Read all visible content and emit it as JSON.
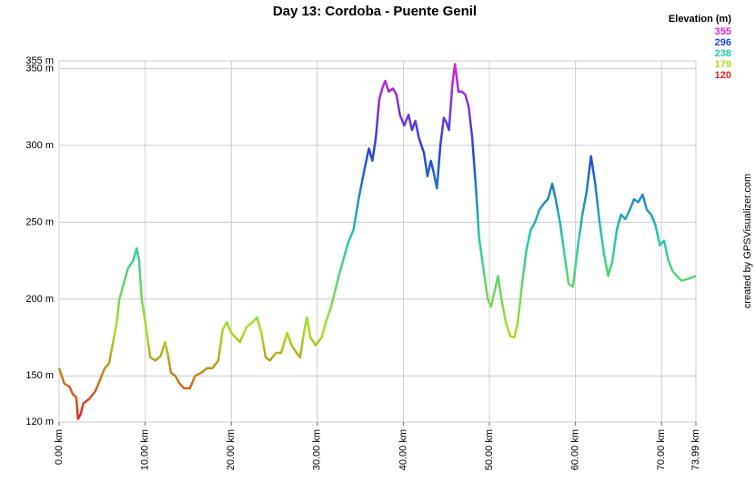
{
  "chart_data": {
    "type": "line",
    "title": "Day 13: Cordoba - Puente Genil",
    "legend_title": "Elevation (m)",
    "credit": "created by GPSVisualizer.com",
    "colorscale": [
      {
        "value": 355,
        "color": "#dd22dd"
      },
      {
        "value": 296,
        "color": "#2244dd"
      },
      {
        "value": 238,
        "color": "#22ccaa"
      },
      {
        "value": 179,
        "color": "#aadd22"
      },
      {
        "value": 120,
        "color": "#dd2222"
      }
    ],
    "grid": true,
    "xlim": [
      0,
      73.99
    ],
    "ylim": [
      120,
      355
    ],
    "xticks": [
      {
        "value": 0,
        "label": "0.00 km"
      },
      {
        "value": 10,
        "label": "10.00 km"
      },
      {
        "value": 20,
        "label": "20.00 km"
      },
      {
        "value": 30,
        "label": "30.00 km"
      },
      {
        "value": 40,
        "label": "40.00 km"
      },
      {
        "value": 50,
        "label": "50.00 km"
      },
      {
        "value": 60,
        "label": "60.00 km"
      },
      {
        "value": 70,
        "label": "70.00 km"
      },
      {
        "value": 73.99,
        "label": "73.99 km"
      }
    ],
    "yticks": [
      {
        "value": 120,
        "label": "120 m"
      },
      {
        "value": 150,
        "label": "150 m"
      },
      {
        "value": 200,
        "label": "200 m"
      },
      {
        "value": 250,
        "label": "250 m"
      },
      {
        "value": 300,
        "label": "300 m"
      },
      {
        "value": 350,
        "label": "350 m"
      },
      {
        "value": 355,
        "label": "355 m"
      }
    ],
    "x": [
      0.0,
      0.3,
      0.6,
      1.2,
      1.6,
      2.0,
      2.2,
      2.5,
      2.8,
      3.5,
      4.2,
      4.8,
      5.3,
      5.8,
      6.2,
      6.7,
      7.0,
      7.5,
      8.0,
      8.6,
      9.0,
      9.3,
      9.6,
      10.0,
      10.6,
      11.2,
      11.8,
      12.3,
      12.6,
      13.0,
      13.5,
      14.0,
      14.5,
      15.2,
      15.8,
      16.5,
      17.2,
      17.8,
      18.5,
      19.0,
      19.5,
      20.0,
      20.5,
      21.0,
      21.8,
      22.5,
      23.0,
      23.5,
      24.0,
      24.5,
      25.2,
      25.8,
      26.5,
      27.0,
      27.6,
      28.0,
      28.5,
      28.8,
      29.2,
      29.8,
      30.5,
      31.0,
      31.6,
      32.5,
      33.0,
      33.6,
      34.2,
      34.8,
      35.5,
      36.0,
      36.4,
      36.8,
      37.2,
      37.6,
      37.9,
      38.3,
      38.8,
      39.2,
      39.6,
      40.1,
      40.6,
      41.0,
      41.4,
      41.8,
      42.4,
      42.8,
      43.2,
      43.5,
      43.9,
      44.3,
      44.7,
      45.0,
      45.3,
      45.7,
      46.0,
      46.4,
      46.8,
      47.2,
      47.6,
      48.0,
      48.4,
      48.8,
      49.3,
      49.8,
      50.2,
      50.6,
      51.0,
      51.4,
      51.9,
      52.4,
      52.9,
      53.3,
      53.8,
      54.3,
      54.8,
      55.3,
      55.8,
      56.3,
      56.8,
      57.3,
      57.7,
      58.2,
      58.7,
      59.2,
      59.7,
      60.3,
      60.8,
      61.3,
      61.8,
      62.3,
      62.8,
      63.3,
      63.8,
      64.3,
      64.8,
      65.3,
      65.8,
      66.3,
      66.8,
      67.3,
      67.8,
      68.3,
      68.8,
      69.3,
      69.8,
      70.3,
      70.8,
      71.3,
      71.8,
      72.3,
      73.0,
      73.99
    ],
    "series": [
      {
        "name": "Elevation",
        "values": [
          155,
          150,
          145,
          143,
          138,
          136,
          122,
          125,
          132,
          135,
          140,
          148,
          155,
          158,
          170,
          185,
          200,
          210,
          220,
          225,
          233,
          225,
          200,
          185,
          162,
          160,
          163,
          172,
          165,
          152,
          150,
          145,
          142,
          142,
          150,
          152,
          155,
          155,
          160,
          180,
          185,
          178,
          175,
          172,
          182,
          185,
          188,
          178,
          162,
          160,
          165,
          165,
          178,
          170,
          165,
          162,
          180,
          188,
          175,
          170,
          175,
          185,
          195,
          215,
          225,
          237,
          245,
          265,
          285,
          298,
          290,
          305,
          330,
          338,
          342,
          335,
          337,
          333,
          320,
          313,
          320,
          310,
          316,
          305,
          295,
          280,
          290,
          283,
          272,
          300,
          318,
          315,
          310,
          340,
          353,
          335,
          335,
          333,
          325,
          305,
          275,
          240,
          220,
          200,
          195,
          205,
          215,
          200,
          185,
          176,
          175,
          185,
          210,
          232,
          245,
          250,
          258,
          262,
          265,
          275,
          265,
          250,
          230,
          210,
          208,
          235,
          255,
          270,
          293,
          275,
          250,
          230,
          215,
          225,
          245,
          255,
          252,
          258,
          265,
          263,
          268,
          258,
          255,
          248,
          235,
          238,
          225,
          218,
          215,
          212,
          213,
          215
        ]
      }
    ]
  }
}
